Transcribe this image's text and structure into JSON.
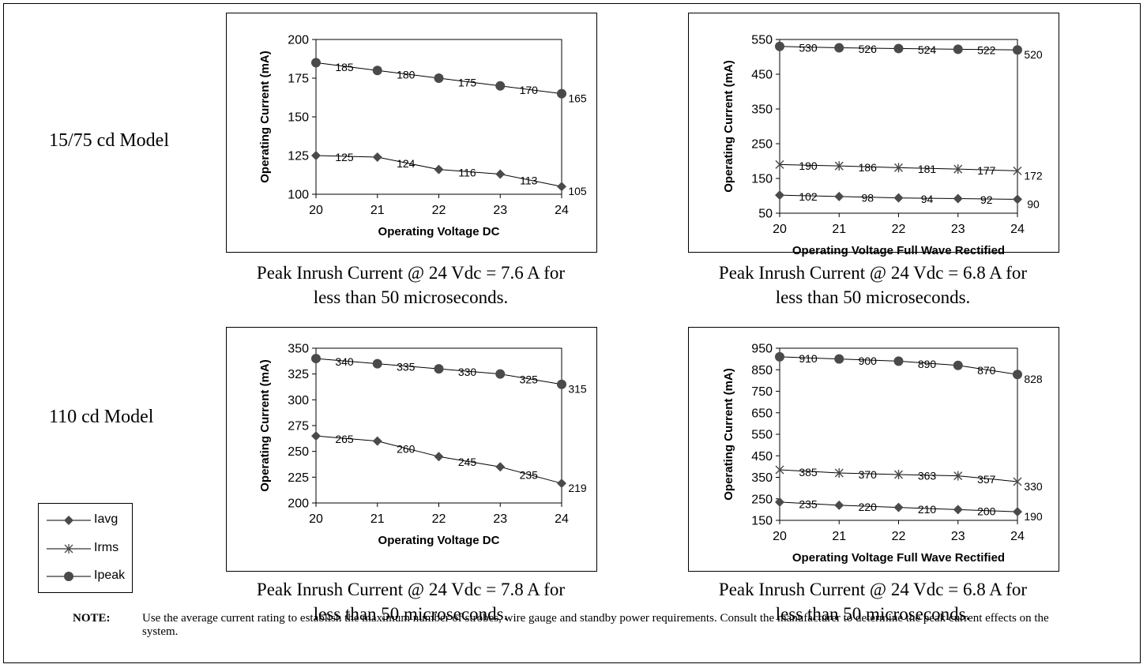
{
  "row_labels": [
    "15/75 cd Model",
    "110 cd Model"
  ],
  "legend": [
    {
      "label": "Iavg",
      "marker": "diamond"
    },
    {
      "label": "Irms",
      "marker": "star"
    },
    {
      "label": "Ipeak",
      "marker": "circle"
    }
  ],
  "captions": [
    {
      "line1": "Peak Inrush Current @ 24 Vdc = 7.6 A for",
      "line2": "less than 50 microseconds."
    },
    {
      "line1": "Peak Inrush Current @ 24 Vdc = 6.8 A for",
      "line2": "less than 50 microseconds."
    },
    {
      "line1": "Peak Inrush Current @ 24 Vdc = 7.8 A for",
      "line2": "less than 50 microseconds."
    },
    {
      "line1": "Peak Inrush Current @ 24 Vdc = 6.8 A for",
      "line2": "less than 50 microseconds."
    }
  ],
  "note": {
    "label": "NOTE:",
    "text": "Use the average current rating to establish the maximum number of strobes, wire gauge and standby power requirements.  Consult the manufacturer to determine the peak current effects on the system."
  },
  "chart_data": [
    {
      "type": "line",
      "xlabel": "Operating Voltage DC",
      "ylabel": "Operating Current (mA)",
      "x": [
        20,
        21,
        22,
        23,
        24
      ],
      "ylim": [
        100,
        200
      ],
      "yticks": [
        100,
        125,
        150,
        175,
        200
      ],
      "series": [
        {
          "name": "Ipeak",
          "marker": "circle",
          "values": [
            185,
            180,
            175,
            170,
            165
          ]
        },
        {
          "name": "Iavg",
          "marker": "diamond",
          "values": [
            125,
            124,
            116,
            113,
            105
          ]
        }
      ]
    },
    {
      "type": "line",
      "xlabel": "Operating Voltage Full Wave Rectified",
      "ylabel": "Operating Current (mA)",
      "x": [
        20,
        21,
        22,
        23,
        24
      ],
      "ylim": [
        50,
        550
      ],
      "yticks": [
        50,
        150,
        250,
        350,
        450,
        550
      ],
      "series": [
        {
          "name": "Ipeak",
          "marker": "circle",
          "values": [
            530,
            526,
            524,
            522,
            520
          ]
        },
        {
          "name": "Irms",
          "marker": "star",
          "values": [
            190,
            186,
            181,
            177,
            172
          ]
        },
        {
          "name": "Iavg",
          "marker": "diamond",
          "values": [
            102,
            98,
            94,
            92,
            90
          ]
        }
      ]
    },
    {
      "type": "line",
      "xlabel": "Operating Voltage DC",
      "ylabel": "Operating Current (mA)",
      "x": [
        20,
        21,
        22,
        23,
        24
      ],
      "ylim": [
        200,
        350
      ],
      "yticks": [
        200,
        225,
        250,
        275,
        300,
        325,
        350
      ],
      "series": [
        {
          "name": "Ipeak",
          "marker": "circle",
          "values": [
            340,
            335,
            330,
            325,
            315
          ]
        },
        {
          "name": "Iavg",
          "marker": "diamond",
          "values": [
            265,
            260,
            245,
            235,
            219
          ]
        }
      ]
    },
    {
      "type": "line",
      "xlabel": "Operating Voltage Full Wave Rectified",
      "ylabel": "Operating Current (mA)",
      "x": [
        20,
        21,
        22,
        23,
        24
      ],
      "ylim": [
        150,
        950
      ],
      "yticks": [
        150,
        250,
        350,
        450,
        550,
        650,
        750,
        850,
        950
      ],
      "series": [
        {
          "name": "Ipeak",
          "marker": "circle",
          "values": [
            910,
            900,
            890,
            870,
            828
          ]
        },
        {
          "name": "Irms",
          "marker": "star",
          "values": [
            385,
            370,
            363,
            357,
            330
          ]
        },
        {
          "name": "Iavg",
          "marker": "diamond",
          "values": [
            235,
            220,
            210,
            200,
            190
          ]
        }
      ]
    }
  ]
}
